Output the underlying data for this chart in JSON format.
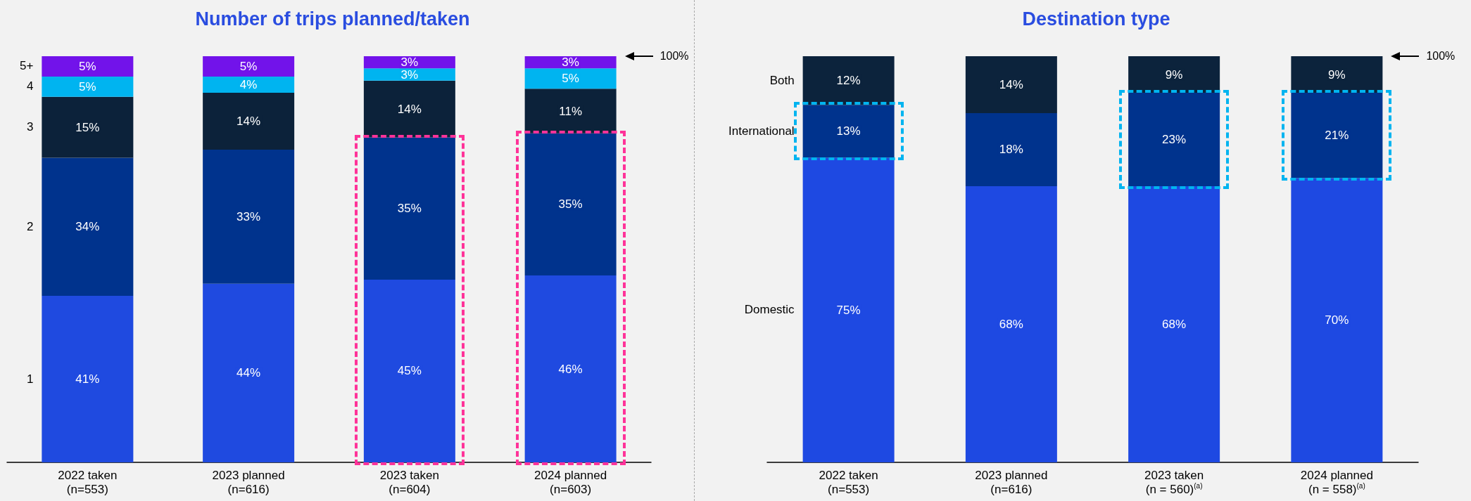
{
  "chart_data": [
    {
      "type": "bar",
      "title": "Number of trips planned/taken",
      "stacked": true,
      "categories": [
        "2022 taken\n(n=553)",
        "2023 planned\n(n=616)",
        "2023 taken\n(n=604)",
        "2024 planned\n(n=603)"
      ],
      "series": [
        {
          "name": "1",
          "color": "#1f4ae0",
          "values": [
            41,
            44,
            45,
            46
          ],
          "value_labels": [
            "41%",
            "44%",
            "45%",
            "46%"
          ]
        },
        {
          "name": "2",
          "color": "#00338d",
          "values": [
            34,
            33,
            35,
            35
          ],
          "value_labels": [
            "34%",
            "33%",
            "35%",
            "35%"
          ]
        },
        {
          "name": "3",
          "color": "#0c223a",
          "values": [
            15,
            14,
            14,
            11
          ],
          "value_labels": [
            "15%",
            "14%",
            "14%",
            "11%"
          ]
        },
        {
          "name": "4",
          "color": "#00b4f0",
          "values": [
            5,
            4,
            3,
            5
          ],
          "value_labels": [
            "5%",
            "4%",
            "3%",
            "5%"
          ]
        },
        {
          "name": "5+",
          "color": "#7213ea",
          "values": [
            5,
            5,
            3,
            3
          ],
          "value_labels": [
            "5%",
            "5%",
            "3%",
            "3%"
          ]
        }
      ],
      "annotations": [
        "100%"
      ]
    },
    {
      "type": "bar",
      "title": "Destination type",
      "stacked": true,
      "categories": [
        "2022 taken\n(n=553)",
        "2023 planned\n(n=616)",
        "2023 taken\n(n = 560)$^{(a)}$",
        "2024 planned\n(n = 558)$^{(a)}$"
      ],
      "series": [
        {
          "name": "Domestic",
          "color": "#1e49e2",
          "values": [
            75,
            68,
            68,
            70
          ],
          "value_labels": [
            "75%",
            "68%",
            "68%",
            "70%"
          ]
        },
        {
          "name": "International",
          "color": "#00338d",
          "values": [
            13,
            18,
            23,
            21
          ],
          "value_labels": [
            "13%",
            "18%",
            "23%",
            "21%"
          ]
        },
        {
          "name": "Both",
          "color": "#0c233c",
          "values": [
            12,
            14,
            9,
            9
          ],
          "value_labels": [
            "12%",
            "14%",
            "9%",
            "9%"
          ]
        }
      ],
      "annotations": [
        "100%"
      ]
    }
  ]
}
